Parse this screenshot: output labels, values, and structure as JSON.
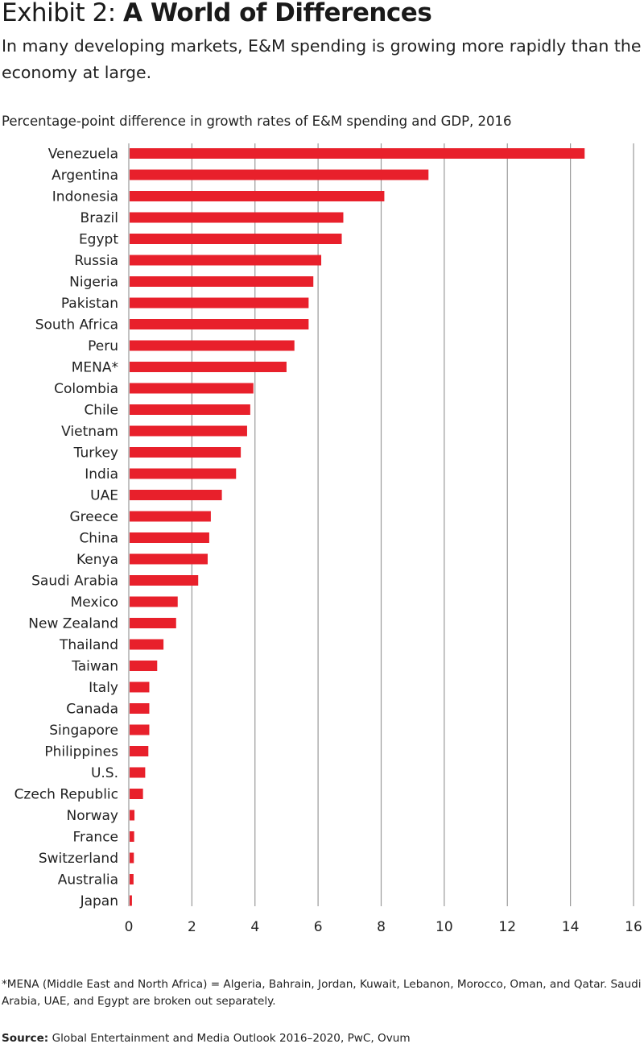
{
  "header": {
    "exhibit_label": "Exhibit 2:",
    "title": "A World of Differences",
    "subtitle": "In many developing markets, E&M spending is growing more rapidly than the economy at large."
  },
  "chart_data": {
    "type": "bar",
    "orientation": "horizontal",
    "title": "Percentage-point difference in growth rates of E&M spending and GDP, 2016",
    "xlabel": "",
    "ylabel": "",
    "categories": [
      "Venezuela",
      "Argentina",
      "Indonesia",
      "Brazil",
      "Egypt",
      "Russia",
      "Nigeria",
      "Pakistan",
      "South Africa",
      "Peru",
      "MENA*",
      "Colombia",
      "Chile",
      "Vietnam",
      "Turkey",
      "India",
      "UAE",
      "Greece",
      "China",
      "Kenya",
      "Saudi Arabia",
      "Mexico",
      "New Zealand",
      "Thailand",
      "Taiwan",
      "Italy",
      "Canada",
      "Singapore",
      "Philippines",
      "U.S.",
      "Czech Republic",
      "Norway",
      "France",
      "Switzerland",
      "Australia",
      "Japan"
    ],
    "values": [
      14.45,
      9.5,
      8.1,
      6.8,
      6.75,
      6.1,
      5.85,
      5.7,
      5.7,
      5.25,
      5.0,
      3.95,
      3.85,
      3.75,
      3.55,
      3.4,
      2.95,
      2.6,
      2.55,
      2.5,
      2.2,
      1.55,
      1.5,
      1.1,
      0.9,
      0.65,
      0.65,
      0.65,
      0.62,
      0.52,
      0.45,
      0.18,
      0.17,
      0.16,
      0.15,
      0.1
    ],
    "xlim": [
      0,
      16
    ],
    "xticks": [
      "0",
      "2",
      "4",
      "6",
      "8",
      "10",
      "12",
      "14",
      "16"
    ],
    "grid": true,
    "bar_color": "#e8202b",
    "grid_color": "#9a9a9a"
  },
  "footer": {
    "footnote": "*MENA (Middle East and North Africa) = Algeria, Bahrain, Jordan, Kuwait, Lebanon, Morocco, Oman, and Qatar. Saudi Arabia, UAE, and Egypt are broken out separately.",
    "source_label": "Source:",
    "source_text": "Global Entertainment and Media Outlook 2016–2020, PwC, Ovum"
  }
}
